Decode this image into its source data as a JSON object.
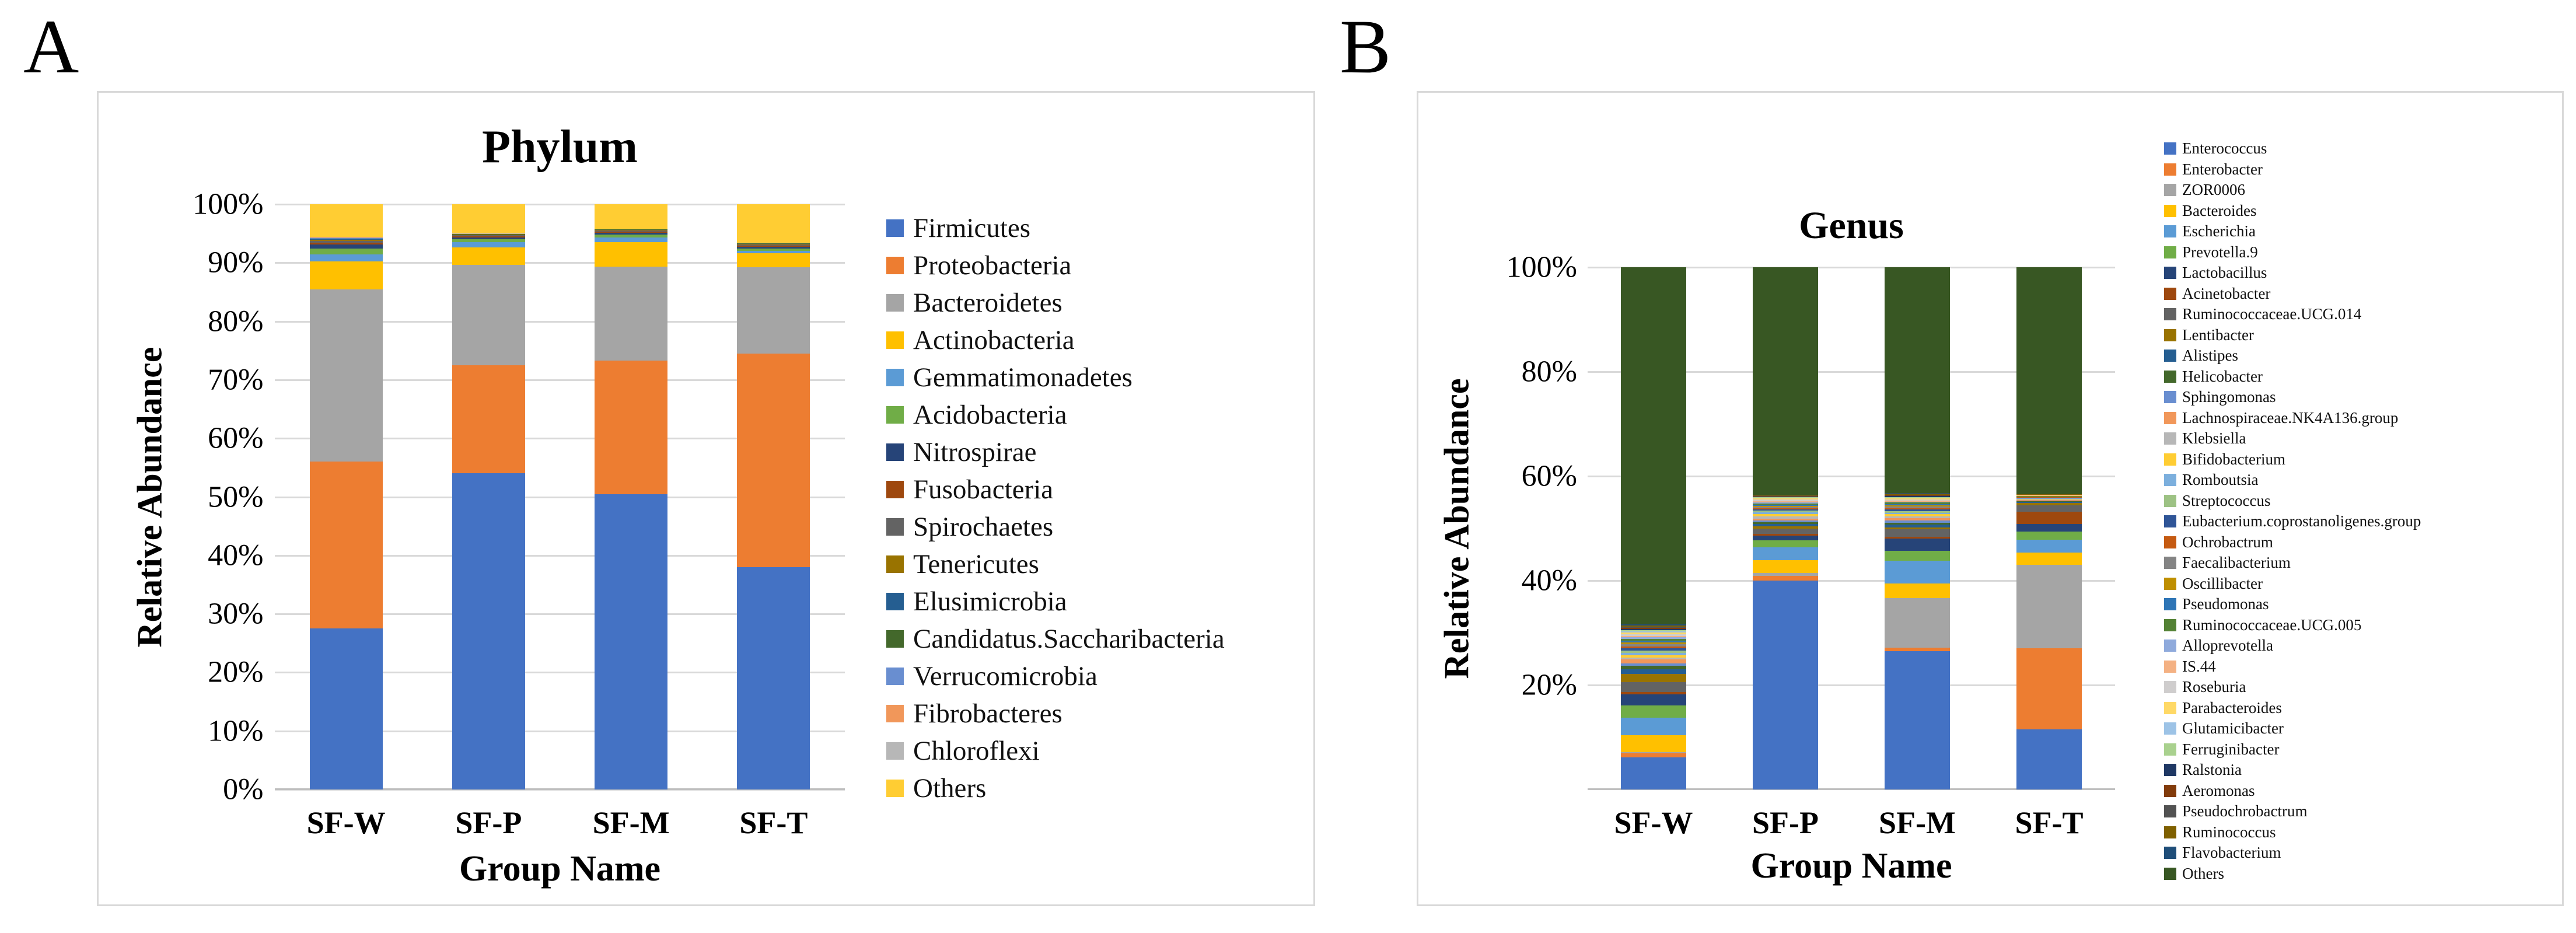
{
  "figure": {
    "panel_a_label": "A",
    "panel_b_label": "B",
    "background": "#ffffff",
    "panel_border_color": "#D9D9D9",
    "gridline_color": "#D9D9D9"
  },
  "chart_data": [
    {
      "panel_label": "A",
      "type": "bar",
      "stacked": true,
      "title": "Phylum",
      "xlabel": "Group Name",
      "ylabel": "Relative Abundance",
      "ylim": [
        0,
        100
      ],
      "grid": true,
      "legend_position": "right",
      "ytick_labels": [
        "100%",
        "90%",
        "80%",
        "70%",
        "60%",
        "50%",
        "40%",
        "30%",
        "20%",
        "10%",
        "0%"
      ],
      "categories": [
        "SF-W",
        "SF-P",
        "SF-M",
        "SF-T"
      ],
      "series": [
        {
          "name": "Firmicutes",
          "color": "#4472C4",
          "values": [
            27.5,
            54.0,
            50.5,
            38.0
          ]
        },
        {
          "name": "Proteobacteria",
          "color": "#ED7D31",
          "values": [
            28.5,
            18.5,
            22.8,
            36.5
          ]
        },
        {
          "name": "Bacteroidetes",
          "color": "#A5A5A5",
          "values": [
            29.4,
            17.1,
            16.0,
            14.7
          ]
        },
        {
          "name": "Actinobacteria",
          "color": "#FFC000",
          "values": [
            4.8,
            3.0,
            4.2,
            2.4
          ]
        },
        {
          "name": "Gemmatimonadetes",
          "color": "#5B9BD5",
          "values": [
            1.2,
            0.9,
            0.8,
            0.45
          ]
        },
        {
          "name": "Acidobacteria",
          "color": "#70AD47",
          "values": [
            1.0,
            0.55,
            0.5,
            0.35
          ]
        },
        {
          "name": "Nitrospirae",
          "color": "#264478",
          "values": [
            0.7,
            0.3,
            0.35,
            0.3
          ]
        },
        {
          "name": "Fusobacteria",
          "color": "#9E480E",
          "values": [
            0.3,
            0.2,
            0.15,
            0.2
          ]
        },
        {
          "name": "Spirochaetes",
          "color": "#636363",
          "values": [
            0.3,
            0.15,
            0.2,
            0.2
          ]
        },
        {
          "name": "Tenericutes",
          "color": "#997300",
          "values": [
            0.2,
            0.1,
            0.1,
            0.1
          ]
        },
        {
          "name": "Elusimicrobia",
          "color": "#255E91",
          "values": [
            0.1,
            0.05,
            0.05,
            0.06
          ]
        },
        {
          "name": "Candidatus.Saccharibacteria",
          "color": "#43682B",
          "values": [
            0.1,
            0.05,
            0.04,
            0.05
          ]
        },
        {
          "name": "Verrucomicrobia",
          "color": "#698ED0",
          "values": [
            0.1,
            0.04,
            0.03,
            0.04
          ]
        },
        {
          "name": "Fibrobacteres",
          "color": "#F1975A",
          "values": [
            0.1,
            0.03,
            0.02,
            0.03
          ]
        },
        {
          "name": "Chloroflexi",
          "color": "#B7B7B7",
          "values": [
            0.1,
            0.03,
            0.01,
            0.02
          ]
        },
        {
          "name": "Others",
          "color": "#FFCD33",
          "values": [
            5.6,
            5.0,
            4.25,
            6.6
          ]
        }
      ]
    },
    {
      "panel_label": "B",
      "type": "bar",
      "stacked": true,
      "title": "Genus",
      "xlabel": "Group Name",
      "ylabel": "Relative Abundance",
      "ylim": [
        0,
        100
      ],
      "grid": true,
      "legend_position": "right",
      "ytick_labels": [
        "100%",
        "80%",
        "60%",
        "40%",
        "20%"
      ],
      "categories": [
        "SF-W",
        "SF-P",
        "SF-M",
        "SF-T"
      ],
      "series": [
        {
          "name": "Enterococcus",
          "color": "#4472C4",
          "values": [
            6.2,
            40.0,
            26.5,
            11.5
          ]
        },
        {
          "name": "Enterobacter",
          "color": "#ED7D31",
          "values": [
            0.7,
            0.9,
            0.7,
            15.5
          ]
        },
        {
          "name": "ZOR0006",
          "color": "#A5A5A5",
          "values": [
            0.2,
            0.6,
            9.4,
            16.0
          ]
        },
        {
          "name": "Bacteroides",
          "color": "#FFC000",
          "values": [
            3.3,
            2.4,
            2.9,
            2.4
          ]
        },
        {
          "name": "Escherichia",
          "color": "#5B9BD5",
          "values": [
            3.4,
            2.5,
            4.3,
            2.4
          ]
        },
        {
          "name": "Prevotella.9",
          "color": "#70AD47",
          "values": [
            2.3,
            1.3,
            1.9,
            1.6
          ]
        },
        {
          "name": "Lactobacillus",
          "color": "#264478",
          "values": [
            2.1,
            0.9,
            2.3,
            1.4
          ]
        },
        {
          "name": "Acinetobacter",
          "color": "#9E480E",
          "values": [
            0.5,
            0.3,
            0.4,
            2.4
          ]
        },
        {
          "name": "Ruminococcaceae.UCG.014",
          "color": "#636363",
          "values": [
            1.9,
            1.0,
            1.4,
            1.2
          ]
        },
        {
          "name": "Lentibacter",
          "color": "#997300",
          "values": [
            1.5,
            0.5,
            0.4,
            0.5
          ]
        },
        {
          "name": "Alistipes",
          "color": "#255E91",
          "values": [
            0.9,
            0.4,
            0.5,
            0.15
          ]
        },
        {
          "name": "Helicobacter",
          "color": "#43682B",
          "values": [
            0.7,
            0.4,
            0.4,
            0.2
          ]
        },
        {
          "name": "Sphingomonas",
          "color": "#698ED0",
          "values": [
            0.5,
            0.3,
            0.4,
            0.1
          ]
        },
        {
          "name": "Lachnospiraceae.NK4A136.group",
          "color": "#F1975A",
          "values": [
            0.7,
            0.4,
            0.5,
            0.1
          ]
        },
        {
          "name": "Klebsiella",
          "color": "#B7B7B7",
          "values": [
            0.35,
            0.4,
            0.3,
            0.1
          ]
        },
        {
          "name": "Bifidobacterium",
          "color": "#FFCD33",
          "values": [
            0.5,
            0.5,
            0.4,
            0.1
          ]
        },
        {
          "name": "Romboutsia",
          "color": "#7CAFDD",
          "values": [
            0.45,
            0.3,
            0.3,
            0.08
          ]
        },
        {
          "name": "Streptococcus",
          "color": "#9DC284",
          "values": [
            0.45,
            0.3,
            0.3,
            0.08
          ]
        },
        {
          "name": "Eubacterium.coprostanoligenes.group",
          "color": "#2F5597",
          "values": [
            0.45,
            0.25,
            0.3,
            0.08
          ]
        },
        {
          "name": "Ochrobactrum",
          "color": "#C55A11",
          "values": [
            0.35,
            0.25,
            0.3,
            0.08
          ]
        },
        {
          "name": "Faecalibacterium",
          "color": "#848484",
          "values": [
            0.4,
            0.25,
            0.3,
            0.08
          ]
        },
        {
          "name": "Oscillibacter",
          "color": "#BF8F00",
          "values": [
            0.35,
            0.2,
            0.25,
            0.05
          ]
        },
        {
          "name": "Pseudomonas",
          "color": "#2E75B6",
          "values": [
            0.35,
            0.2,
            0.25,
            0.05
          ]
        },
        {
          "name": "Ruminococcaceae.UCG.005",
          "color": "#548235",
          "values": [
            0.3,
            0.2,
            0.25,
            0.05
          ]
        },
        {
          "name": "Alloprevotella",
          "color": "#8FAADC",
          "values": [
            0.3,
            0.2,
            0.2,
            0.05
          ]
        },
        {
          "name": "IS.44",
          "color": "#F4B183",
          "values": [
            0.3,
            0.3,
            0.2,
            0.05
          ]
        },
        {
          "name": "Roseburia",
          "color": "#CFCDCD",
          "values": [
            0.3,
            0.25,
            0.2,
            0.05
          ]
        },
        {
          "name": "Parabacteroides",
          "color": "#FFD966",
          "values": [
            0.3,
            0.25,
            0.2,
            0.05
          ]
        },
        {
          "name": "Glutamicibacter",
          "color": "#9DC3E6",
          "values": [
            0.25,
            0.1,
            0.15,
            0.02
          ]
        },
        {
          "name": "Ferruginibacter",
          "color": "#A9D18E",
          "values": [
            0.25,
            0.1,
            0.15,
            0.02
          ]
        },
        {
          "name": "Ralstonia",
          "color": "#1F3864",
          "values": [
            0.25,
            0.1,
            0.15,
            0.02
          ]
        },
        {
          "name": "Aeromonas",
          "color": "#823B0B",
          "values": [
            0.2,
            0.1,
            0.15,
            0.02
          ]
        },
        {
          "name": "Pseudochrobactrum",
          "color": "#525252",
          "values": [
            0.2,
            0.1,
            0.15,
            0.02
          ]
        },
        {
          "name": "Ruminococcus",
          "color": "#7F6000",
          "values": [
            0.2,
            0.1,
            0.15,
            0.02
          ]
        },
        {
          "name": "Flavobacterium",
          "color": "#1F4E79",
          "values": [
            0.2,
            0.1,
            0.15,
            0.02
          ]
        },
        {
          "name": "Others",
          "color": "#385723",
          "values": [
            68.4,
            43.55,
            43.2,
            43.46
          ]
        }
      ]
    }
  ]
}
